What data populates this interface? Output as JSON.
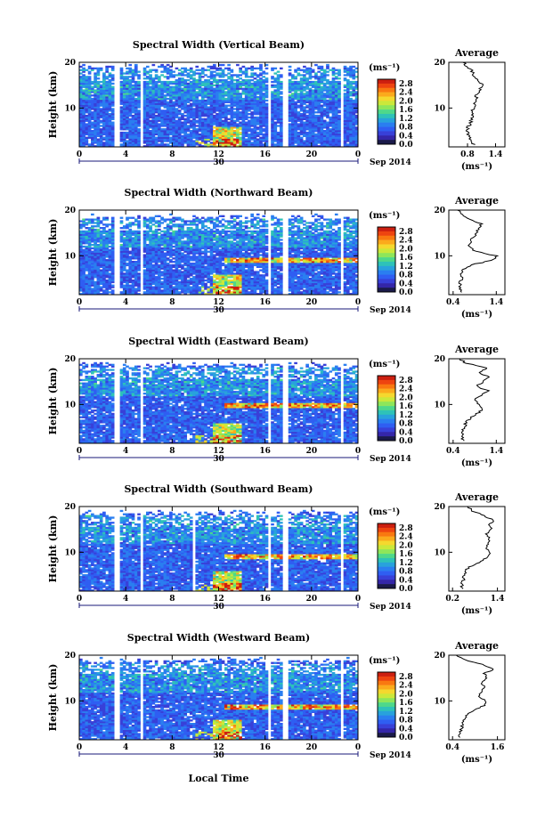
{
  "xlabel": "Local Time",
  "date_day": "30",
  "date_month": "Sep 2014",
  "colorbar": {
    "unit": "(ms⁻¹)",
    "ticks": [
      "2.8",
      "2.4",
      "2.0",
      "1.6",
      "1.2",
      "0.8",
      "0.4",
      "0.0"
    ],
    "colors": [
      "#cc1f10",
      "#ee4410",
      "#f97810",
      "#fbaa1c",
      "#f5d82e",
      "#cbe83a",
      "#8ee65a",
      "#4ed88a",
      "#2ec2b8",
      "#28a2dc",
      "#2a7ef0",
      "#2f5ef2",
      "#3840d8",
      "#3426a8",
      "#1a1a4a"
    ]
  },
  "profile_title": "Average",
  "profile_unit": "(ms⁻¹)",
  "chart_data": [
    {
      "type": "heatmap",
      "title": "Spectral Width (Vertical Beam)",
      "xlabel": "Local Time",
      "ylabel": "Height (km)",
      "x_ticks": [
        "0",
        "4",
        "8",
        "12",
        "16",
        "20",
        "0"
      ],
      "xlim": [
        0,
        24
      ],
      "y_ticks": [
        "20",
        "10"
      ],
      "ylim": [
        1.5,
        20
      ],
      "colorscale": [
        0,
        3.0
      ],
      "profile": {
        "title": "Average",
        "x_ticks": [
          "0.8",
          "1.4"
        ],
        "xlim": [
          0.4,
          1.6
        ],
        "heights": [
          2,
          3,
          4,
          5,
          6,
          7,
          8,
          9,
          10,
          11,
          12,
          13,
          14,
          15,
          16,
          17,
          18,
          19,
          20
        ],
        "values": [
          0.95,
          0.85,
          0.82,
          0.8,
          0.82,
          0.88,
          0.9,
          0.88,
          0.92,
          0.95,
          0.98,
          1.0,
          1.05,
          1.15,
          1.0,
          0.95,
          0.9,
          0.8,
          0.7
        ]
      }
    },
    {
      "type": "heatmap",
      "title": "Spectral Width (Northward Beam)",
      "xlabel": "Local Time",
      "ylabel": "Height (km)",
      "x_ticks": [
        "0",
        "4",
        "8",
        "12",
        "16",
        "20",
        "0"
      ],
      "xlim": [
        0,
        24
      ],
      "y_ticks": [
        "20",
        "10"
      ],
      "ylim": [
        1.5,
        20
      ],
      "colorscale": [
        0,
        3.0
      ],
      "profile": {
        "title": "Average",
        "x_ticks": [
          "0.4",
          "1.4"
        ],
        "xlim": [
          0.3,
          1.6
        ],
        "heights": [
          2,
          3,
          4,
          5,
          6,
          7,
          8,
          9,
          10,
          11,
          12,
          13,
          14,
          15,
          16,
          17,
          18,
          19,
          20
        ],
        "values": [
          0.6,
          0.55,
          0.55,
          0.6,
          0.6,
          0.65,
          0.8,
          1.3,
          1.4,
          0.9,
          0.75,
          0.8,
          0.85,
          0.95,
          1.0,
          1.05,
          0.8,
          0.6,
          0.5
        ]
      }
    },
    {
      "type": "heatmap",
      "title": "Spectral Width (Eastward Beam)",
      "xlabel": "Local Time",
      "ylabel": "Height (km)",
      "x_ticks": [
        "0",
        "4",
        "8",
        "12",
        "16",
        "20",
        "0"
      ],
      "xlim": [
        0,
        24
      ],
      "y_ticks": [
        "20",
        "10"
      ],
      "ylim": [
        1.5,
        20
      ],
      "colorscale": [
        0,
        3.0
      ],
      "profile": {
        "title": "Average",
        "x_ticks": [
          "0.4",
          "1.4"
        ],
        "xlim": [
          0.3,
          1.6
        ],
        "heights": [
          2,
          3,
          4,
          5,
          6,
          7,
          8,
          9,
          10,
          11,
          12,
          13,
          14,
          15,
          16,
          17,
          18,
          19,
          20
        ],
        "values": [
          0.65,
          0.6,
          0.6,
          0.65,
          0.7,
          0.8,
          0.95,
          1.1,
          1.0,
          0.9,
          1.05,
          1.2,
          0.95,
          1.1,
          1.25,
          1.0,
          1.2,
          0.7,
          0.55
        ]
      }
    },
    {
      "type": "heatmap",
      "title": "Spectral Width (Southward Beam)",
      "xlabel": "Local Time",
      "ylabel": "Height (km)",
      "x_ticks": [
        "0",
        "4",
        "8",
        "12",
        "16",
        "20",
        "0"
      ],
      "xlim": [
        0,
        24
      ],
      "y_ticks": [
        "20",
        "10"
      ],
      "ylim": [
        1.5,
        20
      ],
      "colorscale": [
        0,
        3.0
      ],
      "profile": {
        "title": "Average",
        "x_ticks": [
          "0.2",
          "1.4"
        ],
        "xlim": [
          0.1,
          1.6
        ],
        "heights": [
          2,
          3,
          4,
          5,
          6,
          7,
          8,
          9,
          10,
          11,
          12,
          13,
          14,
          15,
          16,
          17,
          18,
          19,
          20
        ],
        "values": [
          0.45,
          0.45,
          0.5,
          0.5,
          0.55,
          0.7,
          0.95,
          1.15,
          1.2,
          1.1,
          1.15,
          1.2,
          1.1,
          1.25,
          1.2,
          1.3,
          1.05,
          0.75,
          0.6
        ]
      }
    },
    {
      "type": "heatmap",
      "title": "Spectral Width (Westward Beam)",
      "xlabel": "Local Time",
      "ylabel": "Height (km)",
      "x_ticks": [
        "0",
        "4",
        "8",
        "12",
        "16",
        "20",
        "0"
      ],
      "xlim": [
        0,
        24
      ],
      "y_ticks": [
        "20",
        "10"
      ],
      "ylim": [
        1.5,
        20
      ],
      "colorscale": [
        0,
        3.0
      ],
      "profile": {
        "title": "Average",
        "x_ticks": [
          "0.4",
          "1.6"
        ],
        "xlim": [
          0.3,
          1.8
        ],
        "heights": [
          2,
          3,
          4,
          5,
          6,
          7,
          8,
          9,
          10,
          11,
          12,
          13,
          14,
          15,
          16,
          17,
          18,
          19,
          20
        ],
        "values": [
          0.6,
          0.6,
          0.65,
          0.65,
          0.7,
          0.8,
          1.0,
          1.25,
          1.3,
          1.1,
          1.2,
          1.25,
          1.15,
          1.3,
          1.25,
          1.5,
          1.2,
          0.7,
          0.5
        ]
      }
    }
  ]
}
